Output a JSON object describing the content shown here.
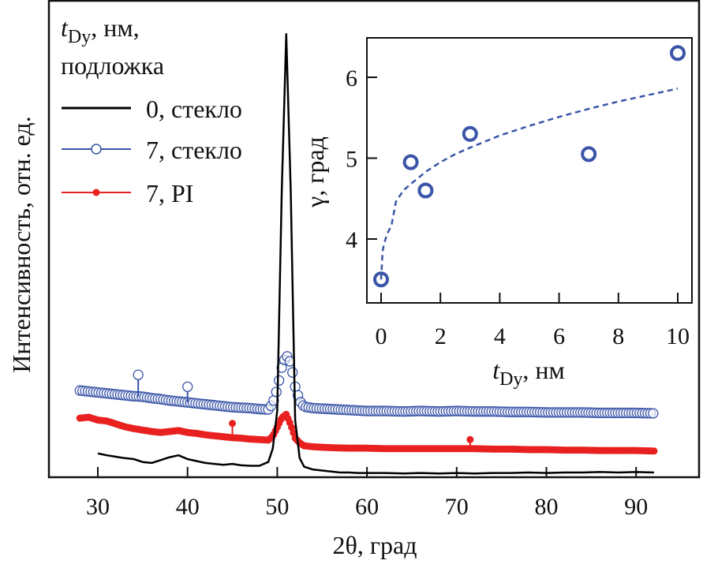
{
  "chart_data": [
    {
      "type": "line",
      "xlabel": "2θ, град",
      "ylabel": "Интенсивность, отн. ед.",
      "xlim": [
        24.5,
        97
      ],
      "ylim": [
        0,
        100
      ],
      "xticks": [
        30,
        40,
        50,
        60,
        70,
        80,
        90
      ],
      "yticks": [],
      "grid": false,
      "legend": {
        "placement": "top-left",
        "title_line1_italic": "t",
        "title_line1_sub": "Dy",
        "title_line1_rest": ", нм,",
        "title_line2": "подложка"
      },
      "series": [
        {
          "name": "0, стекло",
          "color": "#000000",
          "marker": "none",
          "x": [
            30,
            31,
            32,
            33,
            34,
            35,
            36,
            37,
            38,
            39,
            40,
            41,
            42,
            43,
            44,
            45,
            46,
            47,
            48,
            49,
            49.5,
            50,
            50.5,
            51,
            51.5,
            52,
            52.5,
            53,
            54,
            55,
            56,
            57,
            58,
            59,
            60,
            62,
            64,
            66,
            68,
            70,
            72,
            74,
            76,
            78,
            80,
            82,
            84,
            86,
            88,
            90,
            92
          ],
          "y": [
            5.0,
            4.6,
            4.3,
            4.0,
            3.8,
            3.2,
            3.0,
            3.6,
            4.2,
            4.6,
            3.8,
            3.4,
            3.0,
            2.8,
            2.6,
            2.8,
            2.5,
            2.4,
            2.4,
            3.2,
            6,
            14,
            60,
            93,
            60,
            12,
            4,
            2.2,
            1.6,
            1.4,
            1.2,
            1.0,
            1.0,
            0.9,
            0.9,
            0.9,
            0.8,
            0.9,
            0.8,
            0.9,
            0.8,
            0.9,
            0.9,
            1.0,
            0.9,
            1.0,
            1.0,
            1.1,
            1.0,
            1.1,
            1.0
          ]
        },
        {
          "name": "7, стекло",
          "color": "#3a55a8",
          "marker": "open-circle",
          "x": [
            28,
            29,
            30,
            31,
            32,
            33,
            34,
            35,
            36,
            37,
            38,
            39,
            40,
            41,
            42,
            43,
            44,
            45,
            46,
            47,
            48,
            49,
            49.5,
            50,
            50.5,
            51,
            51.5,
            52,
            52.5,
            53,
            54,
            55,
            56,
            58,
            60,
            62,
            64,
            66,
            68,
            70,
            72,
            74,
            76,
            78,
            80,
            82,
            84,
            86,
            88,
            90,
            92
          ],
          "y": [
            18.2,
            18.0,
            17.8,
            17.6,
            17.4,
            17.2,
            17.0,
            16.9,
            16.6,
            16.4,
            16.1,
            15.9,
            15.7,
            15.5,
            15.3,
            15.1,
            14.9,
            14.7,
            14.6,
            14.5,
            14.3,
            14.2,
            15.5,
            18.5,
            23,
            25.7,
            24,
            19,
            16,
            14.8,
            14.5,
            14.4,
            14.3,
            14.1,
            13.9,
            13.9,
            13.8,
            13.9,
            13.8,
            13.9,
            13.8,
            13.8,
            13.7,
            13.7,
            13.6,
            13.6,
            13.6,
            13.5,
            13.5,
            13.5,
            13.4
          ],
          "outliers": [
            {
              "x": 34.5,
              "y": 21.5
            },
            {
              "x": 40,
              "y": 19
            }
          ]
        },
        {
          "name": "7, PI",
          "color": "#e82020",
          "marker": "filled-dot",
          "x": [
            28,
            29,
            30,
            31,
            32,
            33,
            34,
            35,
            36,
            37,
            38,
            39,
            40,
            41,
            42,
            43,
            44,
            45,
            46,
            47,
            48,
            49,
            49.5,
            50,
            50.5,
            51,
            51.5,
            52,
            52.5,
            53,
            54,
            55,
            56,
            58,
            60,
            62,
            64,
            66,
            68,
            70,
            72,
            74,
            76,
            78,
            80,
            82,
            84,
            86,
            88,
            90,
            92
          ],
          "y": [
            12.4,
            12.6,
            12.0,
            11.8,
            11.2,
            10.6,
            10.2,
            9.9,
            9.6,
            9.4,
            9.6,
            9.8,
            9.4,
            9.2,
            8.9,
            8.7,
            8.5,
            8.3,
            8.2,
            8.0,
            7.9,
            7.8,
            8.6,
            10.5,
            12.5,
            13.2,
            11,
            8.2,
            7.2,
            6.6,
            6.4,
            6.3,
            6.2,
            6.1,
            6.1,
            6.0,
            6.0,
            6.0,
            6.0,
            6.0,
            6.0,
            5.9,
            5.9,
            5.8,
            5.8,
            5.7,
            5.7,
            5.6,
            5.6,
            5.6,
            5.5
          ],
          "outliers": [
            {
              "x": 45,
              "y": 11.3
            },
            {
              "x": 71.5,
              "y": 7.9
            }
          ]
        }
      ]
    },
    {
      "type": "scatter",
      "xlabel_italic": "t",
      "xlabel_sub": "Dy",
      "xlabel_rest": ", нм",
      "ylabel": "γ, град",
      "xlim": [
        -0.8,
        10.5
      ],
      "ylim": [
        3.2,
        6.5
      ],
      "xticks": [
        0,
        2,
        4,
        6,
        8,
        10
      ],
      "yticks": [
        4,
        5,
        6
      ],
      "grid": false,
      "color": "#3a55a8",
      "points": {
        "x": [
          0,
          1,
          1.5,
          3,
          7,
          10
        ],
        "y": [
          3.5,
          4.95,
          4.6,
          5.3,
          5.05,
          6.3
        ]
      },
      "fit": {
        "style": "dashed",
        "x": [
          0,
          0.05,
          0.1,
          0.2,
          0.35,
          0.5,
          0.75,
          1,
          1.5,
          2,
          2.5,
          3,
          4,
          5,
          6,
          7,
          8,
          9,
          10
        ],
        "y": [
          3.5,
          3.85,
          3.94,
          4.06,
          4.17,
          4.46,
          4.6,
          4.68,
          4.83,
          4.95,
          5.05,
          5.13,
          5.28,
          5.4,
          5.51,
          5.61,
          5.7,
          5.78,
          5.86
        ]
      }
    }
  ]
}
